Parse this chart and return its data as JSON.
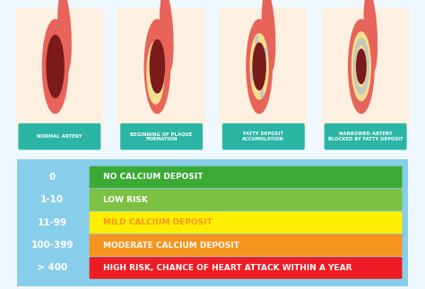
{
  "background_color": "#f0f8ff",
  "top_bg": "#f0f8ff",
  "panel_bg": "#fdf0e0",
  "artery_labels": [
    "NORMAL ARTERY",
    "BEGINNING OF PLAQUE\nFORMATION",
    "FATTY DEPOSIT\nACCUMULATION",
    "NARROWED ARTERY\nBLOCKED BY FATTY DEPOSIT"
  ],
  "artery_label_bg": "#2ab5a5",
  "artery_label_color": "#ffffff",
  "score_ranges": [
    "0",
    "1-10",
    "11-99",
    "100-399",
    "> 400"
  ],
  "score_descriptions": [
    "NO CALCIUM DEPOSIT",
    "LOW RISK",
    "MILD CALCIUM DEPOSIT",
    "MODERATE CALCIUM DEPOSIT",
    "HIGH RISK, CHANCE OF HEART ATTACK WITHIN A YEAR"
  ],
  "bar_colors": [
    "#3aaa35",
    "#7dc143",
    "#ffee00",
    "#f7941d",
    "#ed1c24"
  ],
  "desc_text_colors": [
    "#ffffff",
    "#ffffff",
    "#f7941d",
    "#ffffff",
    "#ffffff"
  ],
  "table_outer_bg": "#87ceeb",
  "score_col_bg": "#87ceeb",
  "score_text_color": "#ffffff",
  "artery_outer": "#e8635a",
  "artery_outer2": "#d44f47",
  "artery_blood": "#7a1a1a",
  "artery_plaque": "#f5e090",
  "artery_calcium": "#c8c8b8"
}
